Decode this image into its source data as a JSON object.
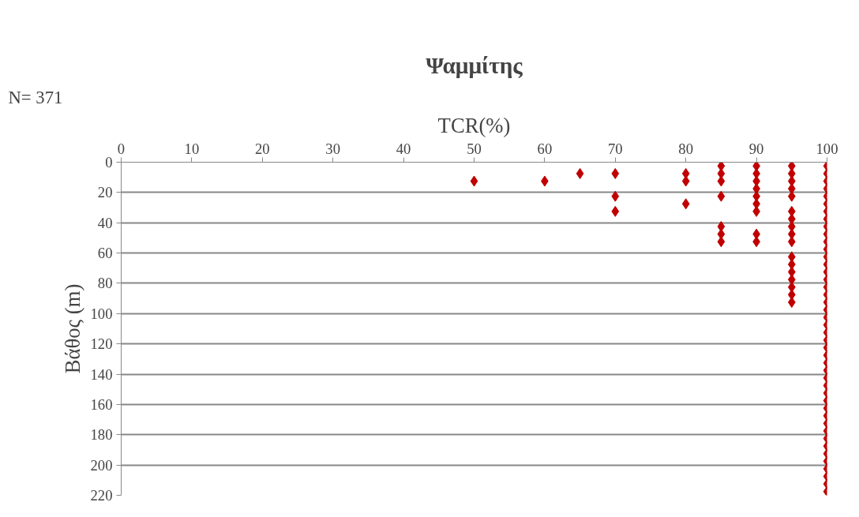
{
  "chart_data": {
    "type": "scatter",
    "title": "Ψαμμίτης",
    "xlabel": "TCR(%)",
    "ylabel": "Βάθος (m)",
    "annotations": [
      "N= 371"
    ],
    "xlim": [
      0,
      100
    ],
    "ylim": [
      220,
      0
    ],
    "xticks": [
      0,
      10,
      20,
      30,
      40,
      50,
      60,
      70,
      80,
      90,
      100
    ],
    "yticks": [
      0,
      20,
      40,
      60,
      80,
      100,
      120,
      140,
      160,
      180,
      200,
      220
    ],
    "grid": "y",
    "marker": "diamond",
    "series": [
      {
        "color": "#c00000",
        "x": [
          50,
          60,
          65,
          70,
          70,
          70,
          80,
          80,
          80,
          85,
          85,
          85,
          85,
          85,
          85,
          85,
          90,
          90,
          90,
          90,
          90,
          90,
          90,
          90,
          90,
          95,
          95,
          95,
          95,
          95,
          95,
          95,
          95,
          95,
          95,
          95,
          95,
          95,
          95,
          95,
          95,
          95,
          100,
          100,
          100,
          100,
          100,
          100,
          100,
          100,
          100,
          100,
          100,
          100,
          100,
          100,
          100,
          100,
          100,
          100,
          100,
          100,
          100,
          100,
          100,
          100,
          100,
          100,
          100,
          100,
          100,
          100,
          100,
          100,
          100,
          100,
          100,
          100,
          100,
          100,
          100,
          100,
          100,
          100,
          100,
          100
        ],
        "values": [
          12.5,
          12.5,
          7.5,
          7.5,
          22.5,
          32.5,
          7.5,
          12.5,
          27.5,
          2.5,
          7.5,
          12.5,
          22.5,
          42.5,
          47.5,
          52.5,
          2.5,
          7.5,
          12.5,
          17.5,
          22.5,
          27.5,
          32.5,
          47.5,
          52.5,
          2.5,
          7.5,
          12.5,
          17.5,
          22.5,
          32.5,
          37.5,
          42.5,
          47.5,
          52.5,
          62.5,
          67.5,
          72.5,
          77.5,
          82.5,
          87.5,
          92.5,
          2.5,
          7.5,
          12.5,
          17.5,
          22.5,
          27.5,
          32.5,
          37.5,
          42.5,
          47.5,
          52.5,
          57.5,
          62.5,
          67.5,
          72.5,
          77.5,
          82.5,
          87.5,
          92.5,
          97.5,
          102.5,
          107.5,
          112.5,
          117.5,
          122.5,
          127.5,
          132.5,
          137.5,
          142.5,
          147.5,
          152.5,
          157.5,
          162.5,
          167.5,
          172.5,
          177.5,
          182.5,
          187.5,
          192.5,
          197.5,
          202.5,
          207.5,
          212.5,
          217.5
        ]
      }
    ]
  }
}
